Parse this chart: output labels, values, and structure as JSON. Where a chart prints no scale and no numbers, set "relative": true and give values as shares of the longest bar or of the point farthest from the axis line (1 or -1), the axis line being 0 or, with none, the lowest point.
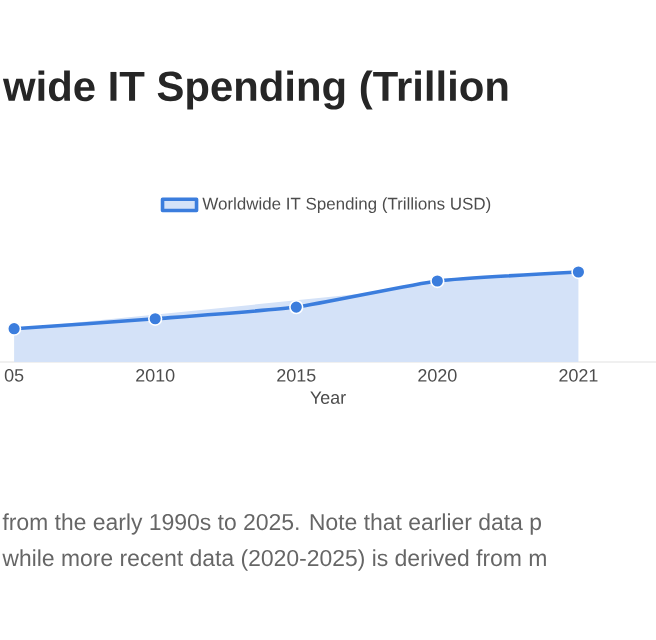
{
  "chart_data": {
    "type": "area",
    "title": "wide IT Spending (Trillion",
    "xlabel": "Year",
    "categories": [
      "05",
      "2010",
      "2015",
      "2020",
      "2021"
    ],
    "series": [
      {
        "name": "Worldwide IT Spending (Trillions USD)",
        "color": "#3b7ddd",
        "values": [
          0.37,
          0.48,
          0.61,
          0.9,
          1
        ]
      }
    ],
    "relative": true,
    "marker": "circle",
    "legend": "top",
    "annotations": [
      "from the early 1990s to 2025. Note that earlier data p",
      "while more recent data (2020-2025) is derived from m"
    ]
  }
}
